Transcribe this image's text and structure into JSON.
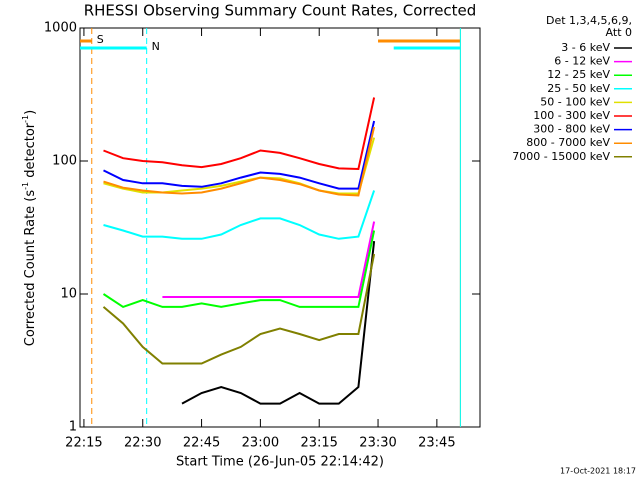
{
  "chart_data": {
    "type": "line",
    "title": "RHESSI Observing Summary Count Rates, Corrected",
    "xlabel": "Start Time (26-Jun-05 22:14:42)",
    "ylabel": [
      "Corrected Count Rate (s",
      "-1",
      " detector",
      "-1",
      ")"
    ],
    "legend_title": [
      "Det 1,3,4,5,6,9,",
      "Att 0"
    ],
    "footer": "17-Oct-2021 18:17",
    "log_y": true,
    "ylim": [
      1,
      1000
    ],
    "yticks": [
      1,
      10,
      100,
      1000
    ],
    "xlim": [
      "22:14",
      "23:56"
    ],
    "xticks": [
      "22:15",
      "22:30",
      "22:45",
      "23:00",
      "23:15",
      "23:30",
      "23:45"
    ],
    "x": [
      "22:20",
      "22:25",
      "22:30",
      "22:35",
      "22:40",
      "22:45",
      "22:50",
      "22:55",
      "23:00",
      "23:05",
      "23:10",
      "23:15",
      "23:20",
      "23:25",
      "23:29"
    ],
    "series": [
      {
        "name": "3 - 6 keV",
        "color": "#000000",
        "values": [
          null,
          null,
          null,
          null,
          1.5,
          1.8,
          2,
          1.8,
          1.5,
          1.5,
          1.8,
          1.5,
          1.5,
          2,
          25
        ]
      },
      {
        "name": "6 - 12 keV",
        "color": "#ff00ff",
        "values": [
          null,
          null,
          null,
          9.5,
          9.5,
          9.5,
          9.5,
          9.5,
          9.5,
          9.5,
          9.5,
          9.5,
          9.5,
          9.5,
          35
        ]
      },
      {
        "name": "12 - 25 keV",
        "color": "#00ff00",
        "values": [
          10,
          8,
          9,
          8,
          8,
          8.5,
          8,
          8.5,
          9,
          9,
          8,
          8,
          8,
          8,
          30
        ]
      },
      {
        "name": "25 - 50 keV",
        "color": "#00ffff",
        "values": [
          33,
          30,
          27,
          27,
          26,
          26,
          28,
          33,
          37,
          37,
          33,
          28,
          26,
          27,
          60
        ]
      },
      {
        "name": "50 - 100 keV",
        "color": "#e0e000",
        "values": [
          68,
          62,
          58,
          58,
          60,
          62,
          65,
          70,
          75,
          74,
          68,
          60,
          57,
          57,
          150
        ]
      },
      {
        "name": "100 - 300 keV",
        "color": "#ff0000",
        "values": [
          120,
          105,
          100,
          98,
          93,
          90,
          95,
          105,
          120,
          115,
          105,
          95,
          88,
          87,
          300
        ]
      },
      {
        "name": "300 - 800 keV",
        "color": "#0000ff",
        "values": [
          85,
          72,
          68,
          68,
          65,
          64,
          68,
          75,
          82,
          80,
          75,
          68,
          62,
          62,
          200
        ]
      },
      {
        "name": "800 - 7000 keV",
        "color": "#ff8c00",
        "values": [
          70,
          63,
          60,
          58,
          57,
          58,
          62,
          68,
          75,
          72,
          67,
          60,
          56,
          55,
          180
        ]
      },
      {
        "name": "7000 - 15000 keV",
        "color": "#808000",
        "values": [
          8,
          6,
          4,
          3,
          3,
          3,
          3.5,
          4,
          5,
          5.5,
          5,
          4.5,
          5,
          5,
          20
        ]
      }
    ],
    "intervals": [
      {
        "label": "S",
        "color": "#ff8c00",
        "start": "22:14",
        "end": "22:17"
      },
      {
        "label": "N",
        "color": "#00ffff",
        "start": "22:14",
        "end": "22:31"
      },
      {
        "color": "#ff8c00",
        "start": "23:30",
        "end": "23:51"
      },
      {
        "color": "#00ffff",
        "start": "23:34",
        "end": "23:51"
      }
    ]
  }
}
